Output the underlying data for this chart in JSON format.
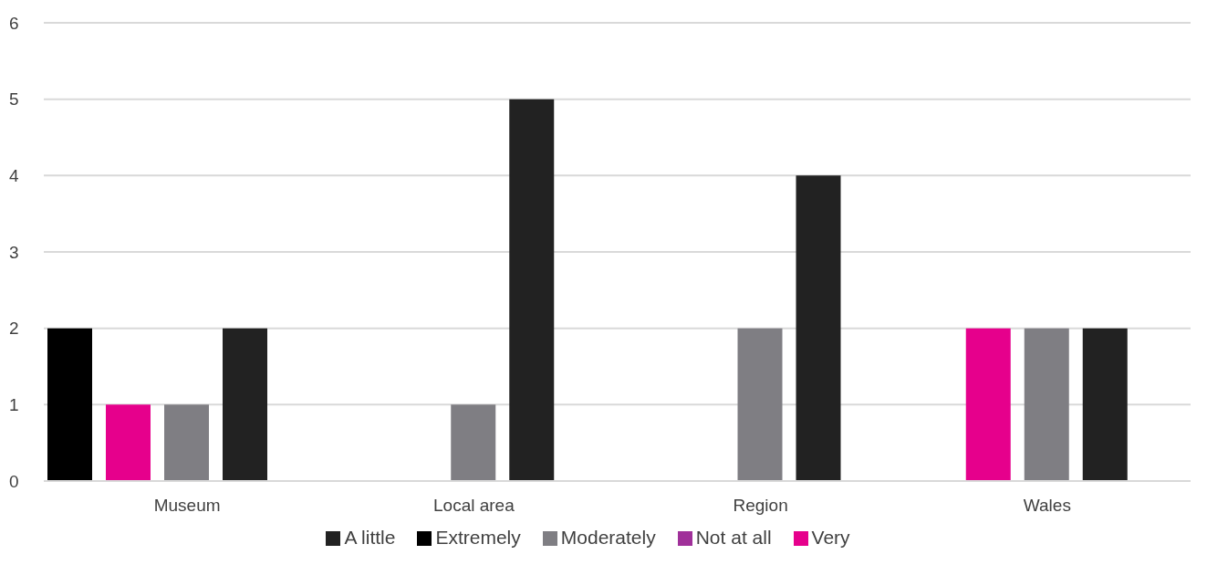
{
  "chart_data": {
    "type": "bar",
    "categories": [
      "Museum",
      "Local area",
      "Region",
      "Wales"
    ],
    "series": [
      {
        "name": "Extremely",
        "color": "#000000",
        "values": [
          2,
          0,
          0,
          0
        ]
      },
      {
        "name": "Very",
        "color": "#e6008c",
        "values": [
          1,
          0,
          0,
          2
        ]
      },
      {
        "name": "Moderately",
        "color": "#7f7e83",
        "values": [
          1,
          1,
          2,
          2
        ]
      },
      {
        "name": "A little",
        "color": "#222222",
        "values": [
          2,
          5,
          4,
          2
        ]
      },
      {
        "name": "Not at all",
        "color": "#a0309a",
        "values": [
          0,
          0,
          0,
          0
        ]
      }
    ],
    "ylim": [
      0,
      6
    ],
    "yticks": [
      0,
      1,
      2,
      3,
      4,
      5,
      6
    ],
    "grid": "y",
    "legend": "bottom"
  }
}
